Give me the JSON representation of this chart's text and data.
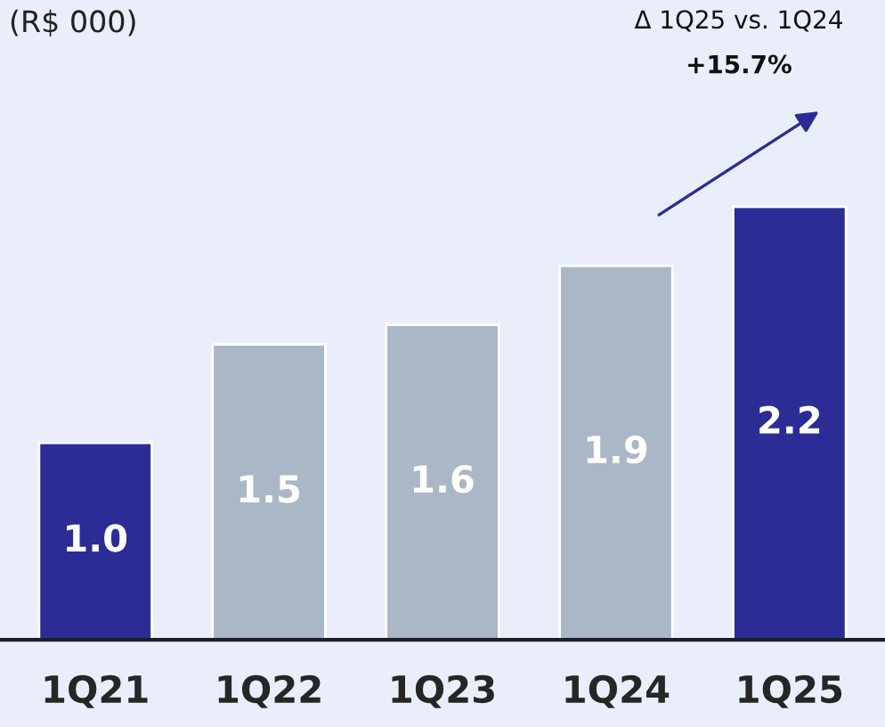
{
  "chart_data": {
    "type": "bar",
    "title": "(R$ 000)",
    "categories": [
      "1Q21",
      "1Q22",
      "1Q23",
      "1Q24",
      "1Q25"
    ],
    "values": [
      1.0,
      1.5,
      1.6,
      1.9,
      2.2
    ],
    "colors": [
      "#2b2c96",
      "#aab7c6",
      "#aab7c6",
      "#aab7c6",
      "#2b2c96"
    ],
    "ylim": [
      0,
      3.25
    ],
    "value_labels": [
      "1.0",
      "1.5",
      "1.6",
      "1.9",
      "2.2"
    ],
    "annotations": [
      "Δ 1Q25 vs. 1Q24",
      "+15.7%"
    ],
    "grid": false,
    "legend": false
  }
}
